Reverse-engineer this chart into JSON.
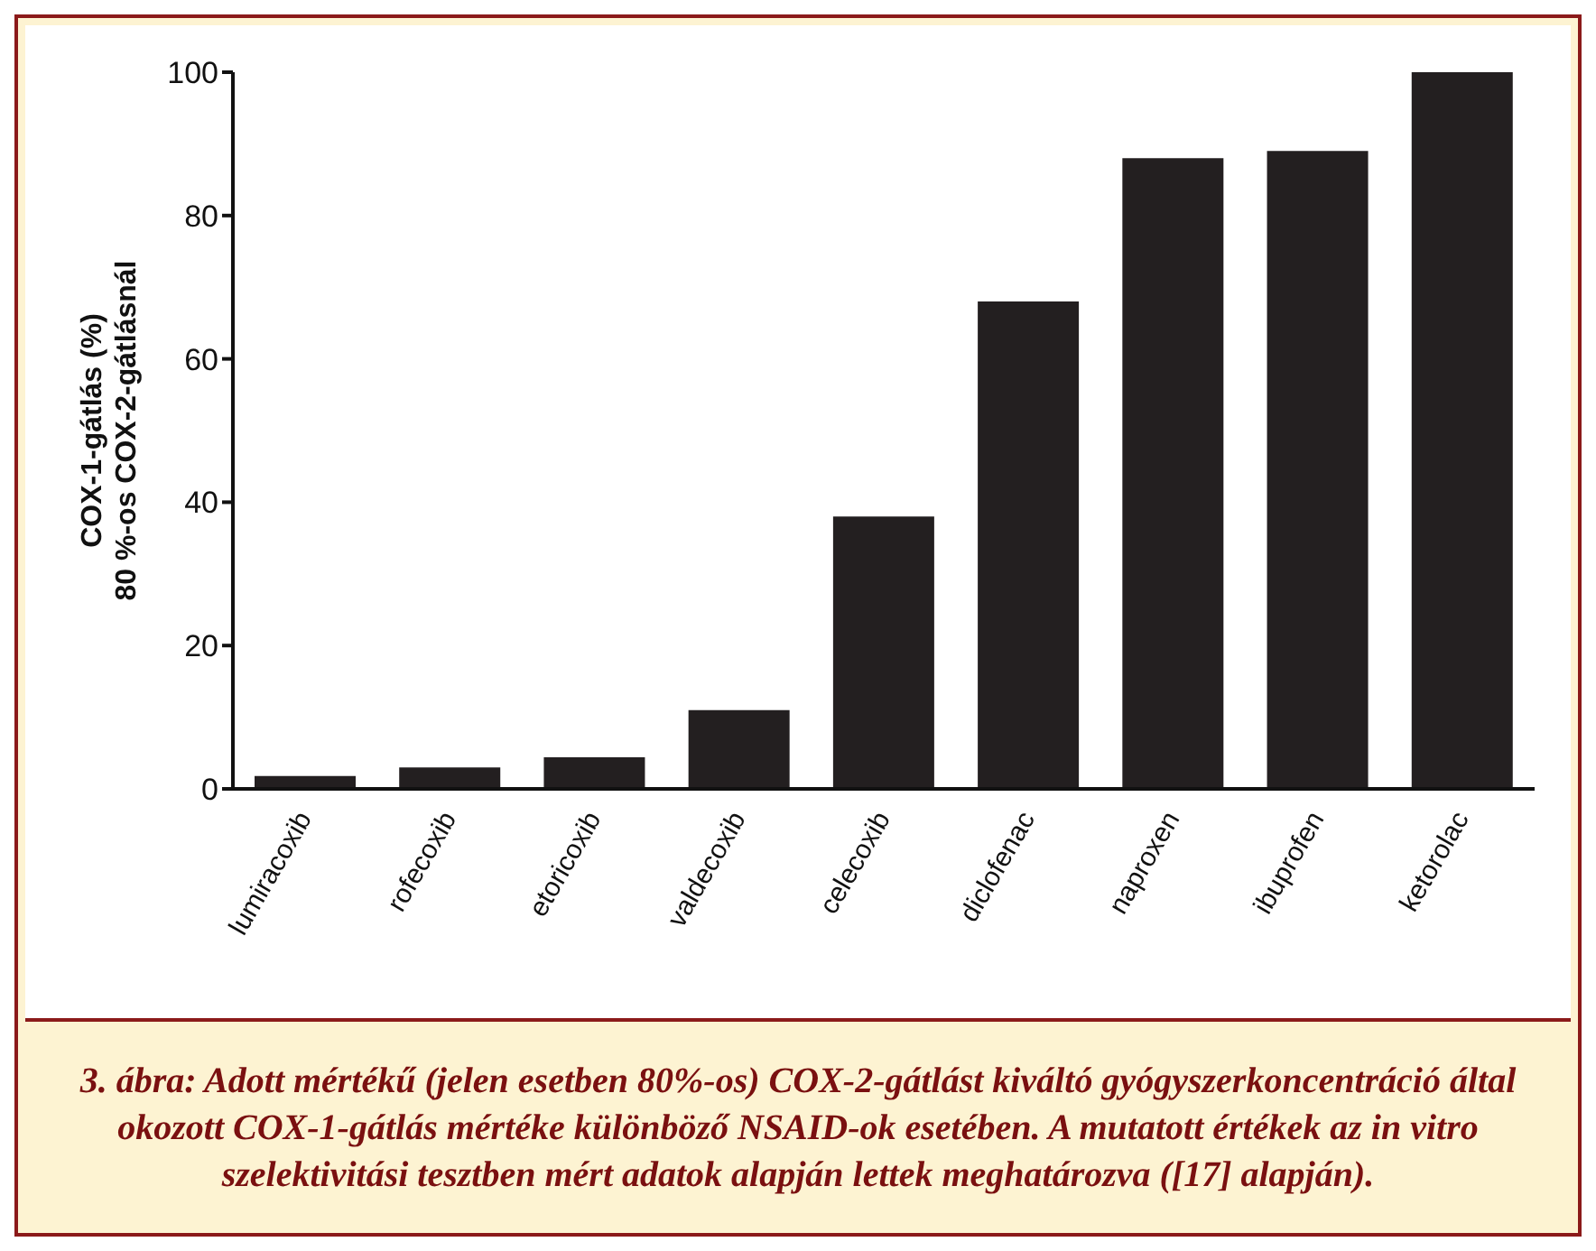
{
  "chart_data": {
    "type": "bar",
    "ylabel": "COX-1-gátlás (%)\n80 %-os COX-2-gátlásnál",
    "categories": [
      "lumiracoxib",
      "rofecoxib",
      "etoricoxib",
      "valdecoxib",
      "celecoxib",
      "diclofenac",
      "naproxen",
      "ibuprofen",
      "ketorolac"
    ],
    "values": [
      1.8,
      3,
      4.4,
      11,
      38,
      68,
      88,
      89,
      100
    ],
    "color": "#231f20",
    "ylim": [
      0,
      100
    ],
    "yticks": [
      0,
      20,
      40,
      60,
      80,
      100
    ],
    "grid": false,
    "legend": false,
    "annotations": [
      "3. ábra: Adott mértékű (jelen esetben 80%-os) COX-2-gátlást kiváltó gyógyszerkoncentráció által okozott COX-1-gátlás mértéke különböző NSAID-ok esetében. A mutatott értékek az in vitro szelektivitási tesztben mért adatok alapján lettek meghatározva ([17] alapján)."
    ]
  }
}
